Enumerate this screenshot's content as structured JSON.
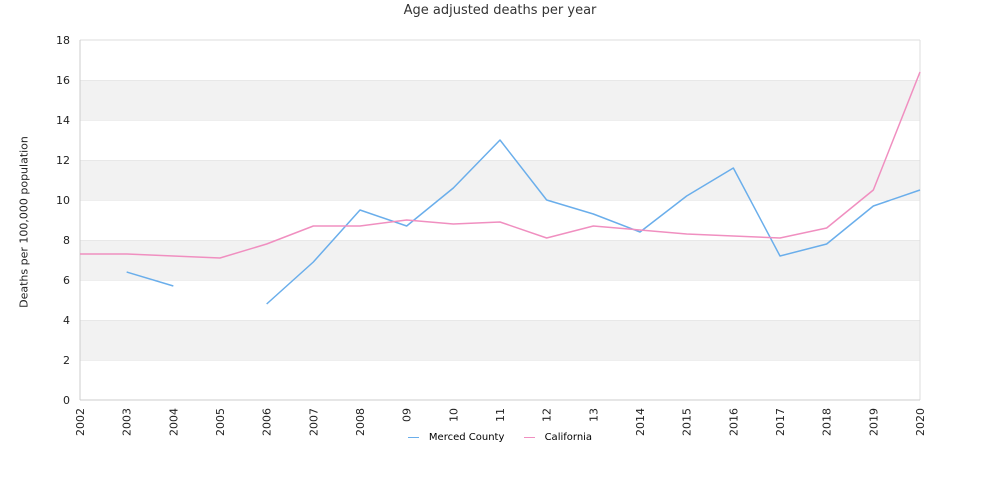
{
  "chart_data": {
    "type": "line",
    "title": "Age adjusted deaths per year",
    "xlabel": "",
    "ylabel": "Deaths per 100,000 population",
    "ylim": [
      0,
      18
    ],
    "yticks": [
      0,
      2,
      4,
      6,
      8,
      10,
      12,
      14,
      16,
      18
    ],
    "grid": "alternating horizontal bands",
    "legend_position": "bottom",
    "categories": [
      "2002",
      "2003",
      "2004",
      "2005",
      "2006",
      "2007",
      "2008",
      "09",
      "10",
      "11",
      "12",
      "13",
      "2014",
      "2015",
      "2016",
      "2017",
      "2018",
      "2019",
      "2020"
    ],
    "series": [
      {
        "name": "Merced County",
        "color": "#6aaeeb",
        "values": [
          null,
          6.4,
          5.7,
          null,
          4.8,
          6.9,
          9.5,
          8.7,
          10.6,
          13.0,
          10.0,
          9.3,
          8.4,
          10.2,
          11.6,
          7.2,
          7.8,
          9.7,
          10.5
        ]
      },
      {
        "name": "California",
        "color": "#f08fc0",
        "values": [
          7.3,
          7.3,
          7.2,
          7.1,
          7.8,
          8.7,
          8.7,
          9.0,
          8.8,
          8.9,
          8.1,
          8.7,
          8.5,
          8.3,
          8.2,
          8.1,
          8.6,
          10.5,
          16.4
        ]
      }
    ]
  }
}
